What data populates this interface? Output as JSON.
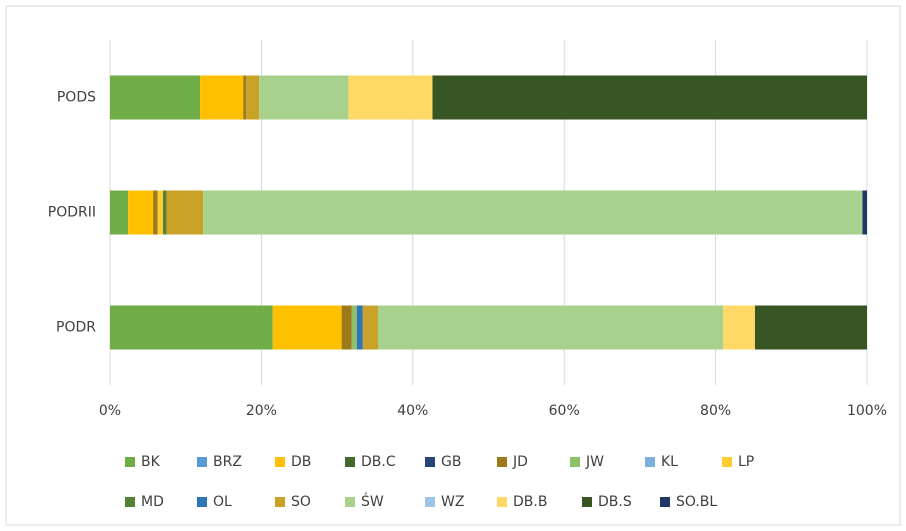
{
  "chart_data": {
    "type": "stacked-bar-horizontal",
    "categories": [
      "PODS",
      "PODRII",
      "PODR"
    ],
    "series": [
      {
        "name": "BK",
        "color": "#70ad47",
        "values": [
          11.9,
          2.4,
          21.5
        ]
      },
      {
        "name": "BRZ",
        "color": "#5b9bd5",
        "values": [
          0,
          0,
          0
        ]
      },
      {
        "name": "DB",
        "color": "#ffc000",
        "values": [
          5.7,
          3.3,
          9.1
        ]
      },
      {
        "name": "DB.C",
        "color": "#43682b",
        "values": [
          0,
          0,
          0
        ]
      },
      {
        "name": "GB",
        "color": "#264478",
        "values": [
          0,
          0,
          0
        ]
      },
      {
        "name": "JD",
        "color": "#9e7a1a",
        "values": [
          0.4,
          0.6,
          1.3
        ]
      },
      {
        "name": "JW",
        "color": "#8cc168",
        "values": [
          0,
          0,
          0.7
        ]
      },
      {
        "name": "KL",
        "color": "#7cafdd",
        "values": [
          0,
          0,
          0
        ]
      },
      {
        "name": "LP",
        "color": "#ffcd33",
        "values": [
          0,
          0.7,
          0
        ]
      },
      {
        "name": "MD",
        "color": "#548235",
        "values": [
          0,
          0.5,
          0
        ]
      },
      {
        "name": "OL",
        "color": "#2e75b6",
        "values": [
          0,
          0,
          0.8
        ]
      },
      {
        "name": "SO",
        "color": "#c9a227",
        "values": [
          1.7,
          4.8,
          2.0
        ]
      },
      {
        "name": "ŚW",
        "color": "#a9d18e",
        "values": [
          11.8,
          87.1,
          45.6
        ]
      },
      {
        "name": "WZ",
        "color": "#9dc3e6",
        "values": [
          0,
          0,
          0
        ]
      },
      {
        "name": "DB.B",
        "color": "#ffd966",
        "values": [
          11.1,
          0,
          4.2
        ]
      },
      {
        "name": "DB.S",
        "color": "#375623",
        "values": [
          57.4,
          0,
          14.8
        ]
      },
      {
        "name": "SO.BL",
        "color": "#1f3864",
        "values": [
          0,
          0.6,
          0
        ]
      }
    ],
    "xlim": [
      0,
      100
    ],
    "xticks": [
      {
        "value": 0,
        "label": "0%"
      },
      {
        "value": 20,
        "label": "20%"
      },
      {
        "value": 40,
        "label": "40%"
      },
      {
        "value": 60,
        "label": "60%"
      },
      {
        "value": 80,
        "label": "80%"
      },
      {
        "value": 100,
        "label": "100%"
      }
    ],
    "grid": true
  }
}
